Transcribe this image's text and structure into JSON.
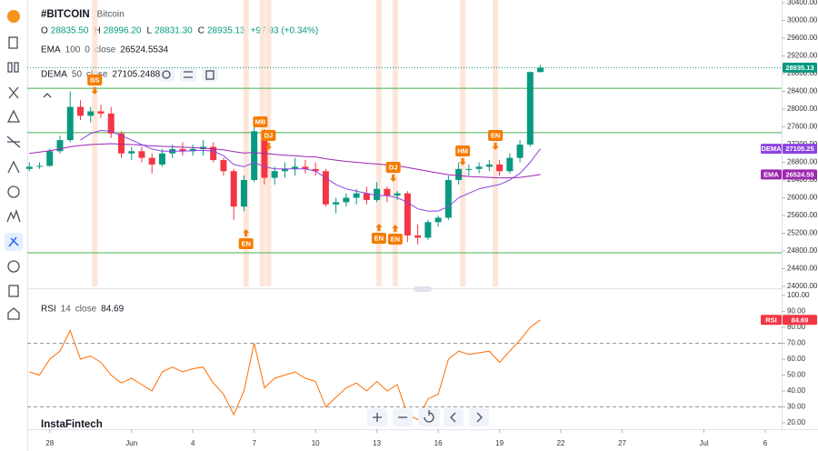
{
  "header": {
    "symbol": "#BITCOIN",
    "name": "Bitcoin",
    "ohlc": [
      {
        "key": "O",
        "value": "28835.50"
      },
      {
        "key": "H",
        "value": "28996.20"
      },
      {
        "key": "L",
        "value": "28831.30"
      },
      {
        "key": "C",
        "value": "28935.13"
      }
    ],
    "change": "+97.93 (+0.34%)"
  },
  "logo": "InstaFintech",
  "chart_data": [
    {
      "type": "candlestick",
      "legends": [
        [
          "EMA",
          "100",
          "0",
          "close",
          "26524.5534"
        ],
        [
          "DEMA",
          "50",
          "close",
          "27105.2488"
        ]
      ],
      "x": [
        -1,
        -0.5,
        0,
        0.5,
        1,
        1.5,
        2,
        2.5,
        3,
        3.5,
        4,
        4.5,
        5,
        5.5,
        6,
        6.5,
        7,
        7.5,
        8,
        8.5,
        9,
        9.5,
        10,
        10.5,
        11,
        11.5,
        12,
        12.5,
        13,
        13.5,
        14,
        14.5,
        15,
        15.5,
        16,
        16.5,
        17,
        17.5,
        18,
        18.5,
        19,
        19.5,
        20,
        20.5,
        21,
        21.5,
        22,
        22.5,
        23,
        23.5,
        24
      ],
      "open": [
        26650,
        26700,
        26720,
        27050,
        27300,
        28050,
        27850,
        27950,
        27900,
        27450,
        27000,
        27050,
        26900,
        26750,
        27000,
        27100,
        27050,
        27100,
        27150,
        26850,
        26600,
        25800,
        26400,
        27500,
        26450,
        26600,
        26650,
        26700,
        26650,
        26600,
        25850,
        25900,
        26000,
        26100,
        25950,
        26200,
        26050,
        26100,
        25150,
        25100,
        25450,
        25550,
        26400,
        26650,
        26650,
        26700,
        26750,
        26600,
        26900,
        27200,
        28835.5
      ],
      "high": [
        26800,
        26800,
        27100,
        27400,
        28400,
        28200,
        28050,
        28100,
        28050,
        27500,
        27150,
        27150,
        27000,
        27100,
        27200,
        27250,
        27200,
        27300,
        27250,
        26900,
        26650,
        26500,
        27650,
        27550,
        26700,
        26800,
        26900,
        26850,
        26800,
        26650,
        26000,
        26100,
        26200,
        26250,
        26350,
        26250,
        26150,
        26150,
        25400,
        25500,
        25600,
        26500,
        26800,
        26750,
        26800,
        26850,
        26850,
        27000,
        27300,
        28850,
        28996.2
      ],
      "low": [
        26600,
        26650,
        26700,
        27000,
        27250,
        27750,
        27700,
        27800,
        27350,
        26900,
        26850,
        26800,
        26550,
        26700,
        26900,
        26950,
        26950,
        26950,
        26800,
        26500,
        25500,
        25700,
        26350,
        26300,
        26300,
        26450,
        26500,
        26550,
        26500,
        25800,
        25650,
        25800,
        25850,
        25850,
        25900,
        25900,
        25950,
        25000,
        24950,
        25050,
        25350,
        25500,
        26300,
        26500,
        26550,
        26600,
        26500,
        26550,
        26800,
        27150,
        28831.3
      ],
      "close": [
        26700,
        26720,
        27050,
        27300,
        28050,
        27850,
        27950,
        27900,
        27450,
        27000,
        27050,
        26900,
        26750,
        27000,
        27100,
        27050,
        27100,
        27150,
        26850,
        26600,
        25800,
        26400,
        27500,
        26450,
        26600,
        26650,
        26700,
        26650,
        26600,
        25850,
        25900,
        26000,
        26100,
        25950,
        26200,
        26050,
        26100,
        25150,
        25100,
        25450,
        25550,
        26400,
        26650,
        26650,
        26700,
        26750,
        26600,
        26900,
        27200,
        28835.5,
        28935.13
      ],
      "up_color": "#089981",
      "down_color": "#f23645",
      "last_price_label": "28935.13",
      "series": [
        {
          "name": "EMA",
          "color": "#9c27b0",
          "tag": "26524.55",
          "values": [
            27000,
            27030,
            27060,
            27100,
            27150,
            27180,
            27200,
            27210,
            27220,
            27210,
            27200,
            27190,
            27170,
            27160,
            27150,
            27140,
            27130,
            27120,
            27100,
            27080,
            27040,
            27010,
            27020,
            27000,
            26980,
            26960,
            26950,
            26930,
            26920,
            26880,
            26850,
            26820,
            26800,
            26780,
            26760,
            26740,
            26720,
            26680,
            26640,
            26600,
            26560,
            26520,
            26500,
            26480,
            26470,
            26460,
            26450,
            26450,
            26460,
            26490,
            26524.55
          ]
        },
        {
          "name": "DEMA",
          "color": "#8e44e0",
          "tag": "27105.25",
          "values": [
            null,
            null,
            null,
            null,
            null,
            27300,
            27450,
            27520,
            27500,
            27400,
            27300,
            27200,
            27100,
            27050,
            27050,
            27050,
            27060,
            27070,
            27050,
            26950,
            26750,
            26700,
            26800,
            26700,
            26650,
            26650,
            26650,
            26650,
            26600,
            26450,
            26300,
            26200,
            26150,
            26100,
            26050,
            26050,
            26000,
            25900,
            25750,
            25700,
            25700,
            25800,
            26000,
            26100,
            26200,
            26250,
            26300,
            26400,
            26550,
            26800,
            27105.25
          ]
        }
      ],
      "hlines": [
        28470,
        27470,
        24760
      ],
      "hline_color": "#4caf50",
      "highlight_x": [
        2.2,
        9.6,
        10.4,
        10.7,
        16.1,
        16.9,
        20.2,
        21.8
      ],
      "highlight_color": "#fde0cf",
      "annotation_color": "#f57c00",
      "annotations": [
        {
          "label": "BS",
          "x": 2.2,
          "y": 28656,
          "dir": "down"
        },
        {
          "label": "MB",
          "x": 10.3,
          "y": 27713,
          "dir": "none"
        },
        {
          "label": "DJ",
          "x": 10.7,
          "y": 27405,
          "dir": "down"
        },
        {
          "label": "EN",
          "x": 9.6,
          "y": 24964,
          "dir": "up"
        },
        {
          "label": "DJ",
          "x": 16.8,
          "y": 26687,
          "dir": "down"
        },
        {
          "label": "EN",
          "x": 16.1,
          "y": 25087,
          "dir": "up"
        },
        {
          "label": "EN",
          "x": 16.9,
          "y": 25067,
          "dir": "up"
        },
        {
          "label": "HM",
          "x": 20.2,
          "y": 27056,
          "dir": "down"
        },
        {
          "label": "EN",
          "x": 21.8,
          "y": 27405,
          "dir": "down"
        }
      ],
      "xlim": [
        -1.1,
        35.8
      ],
      "ylim": [
        24000,
        30461.5
      ],
      "yticks": [
        {
          "value": 24000,
          "label": "24000.00"
        },
        {
          "value": 24400,
          "label": "24400.00"
        },
        {
          "value": 24800,
          "label": "24800.00"
        },
        {
          "value": 25200,
          "label": "25200.00"
        },
        {
          "value": 25600,
          "label": "25600.00"
        },
        {
          "value": 26000,
          "label": "26000.00"
        },
        {
          "value": 26400,
          "label": "26400.00"
        },
        {
          "value": 26800,
          "label": "26800.00"
        },
        {
          "value": 27200,
          "label": "27200.00"
        },
        {
          "value": 27600,
          "label": "27600.00"
        },
        {
          "value": 28000,
          "label": "28000.00"
        },
        {
          "value": 28400,
          "label": "28400.00"
        },
        {
          "value": 28800,
          "label": "28800.00"
        },
        {
          "value": 29200,
          "label": "29200.00"
        },
        {
          "value": 29600,
          "label": "29600.00"
        },
        {
          "value": 30000,
          "label": "30000.00"
        },
        {
          "value": 30400,
          "label": "30400.00"
        }
      ]
    },
    {
      "type": "line",
      "name": "RSI",
      "tag": "84.69",
      "color": "#ff6d00",
      "tag_color": "#f23645",
      "legend": [
        "RSI",
        "14",
        "close",
        "84.69"
      ],
      "x": [
        -1,
        -0.5,
        0,
        0.5,
        1,
        1.5,
        2,
        2.5,
        3,
        3.5,
        4,
        4.5,
        5,
        5.5,
        6,
        6.5,
        7,
        7.5,
        8,
        8.5,
        9,
        9.5,
        10,
        10.5,
        11,
        11.5,
        12,
        12.5,
        13,
        13.5,
        14,
        14.5,
        15,
        15.5,
        16,
        16.5,
        17,
        17.5,
        18,
        18.5,
        19,
        19.5,
        20,
        20.5,
        21,
        21.5,
        22,
        22.5,
        23,
        23.5,
        24
      ],
      "values": [
        52,
        50,
        60,
        65,
        78,
        60,
        62,
        58,
        50,
        45,
        48,
        44,
        40,
        52,
        55,
        52,
        54,
        55,
        45,
        38,
        25,
        40,
        70,
        42,
        48,
        50,
        52,
        48,
        46,
        30,
        36,
        42,
        45,
        40,
        46,
        40,
        44,
        25,
        22,
        35,
        38,
        60,
        65,
        63,
        64,
        65,
        58,
        65,
        72,
        80,
        84.69
      ],
      "levels": [
        70,
        30
      ],
      "xlim": [
        -1.1,
        35.8
      ],
      "ylim": [
        16,
        101.7
      ],
      "yticks": [
        {
          "value": 20,
          "label": "20.00"
        },
        {
          "value": 30,
          "label": "30.00"
        },
        {
          "value": 40,
          "label": "40.00"
        },
        {
          "value": 50,
          "label": "50.00"
        },
        {
          "value": 60,
          "label": "60.00"
        },
        {
          "value": 70,
          "label": "70.00"
        },
        {
          "value": 80,
          "label": "80.00"
        },
        {
          "value": 90,
          "label": "90.00"
        },
        {
          "value": 100,
          "label": "100.00"
        }
      ],
      "xticks": [
        {
          "value": 0,
          "label": "28"
        },
        {
          "value": 4,
          "label": "Jun"
        },
        {
          "value": 7,
          "label": "4"
        },
        {
          "value": 10,
          "label": "7"
        },
        {
          "value": 13,
          "label": "10"
        },
        {
          "value": 16,
          "label": "13"
        },
        {
          "value": 19,
          "label": "16"
        },
        {
          "value": 22,
          "label": "19"
        },
        {
          "value": 25,
          "label": "22"
        },
        {
          "value": 28,
          "label": "27"
        },
        {
          "value": 32,
          "label": "Jul"
        },
        {
          "value": 35,
          "label": "6"
        }
      ]
    }
  ]
}
